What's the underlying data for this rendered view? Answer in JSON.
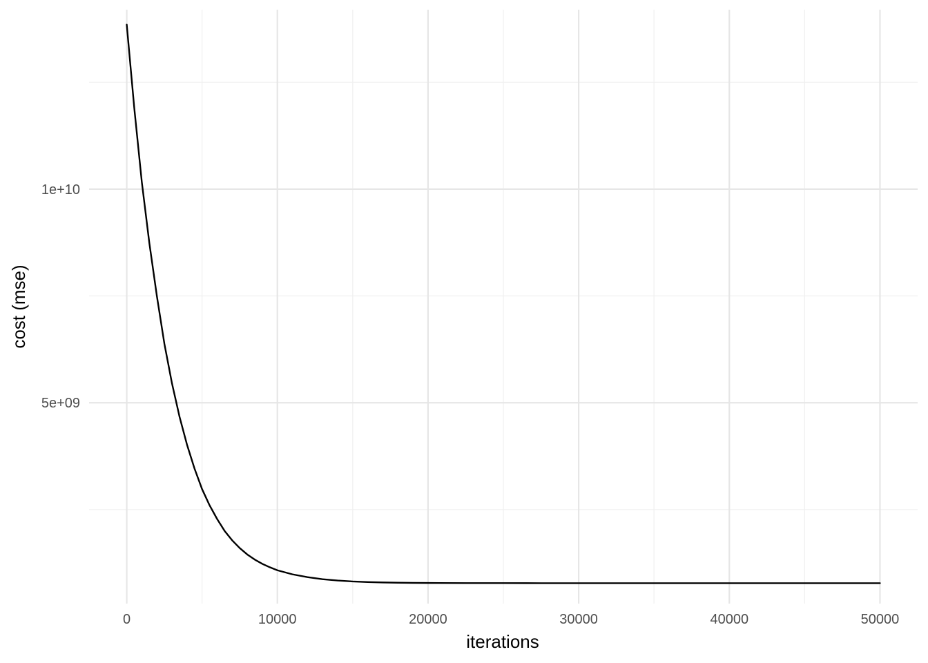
{
  "chart_data": {
    "type": "line",
    "title": "",
    "xlabel": "iterations",
    "ylabel": "cost (mse)",
    "xlim": [
      -2500,
      52500
    ],
    "ylim": [
      300000000,
      14200000000
    ],
    "x_major_ticks": [
      0,
      10000,
      20000,
      30000,
      40000,
      50000
    ],
    "x_major_tick_labels": [
      "0",
      "10000",
      "20000",
      "30000",
      "40000",
      "50000"
    ],
    "x_minor_ticks": [
      5000,
      15000,
      25000,
      35000,
      45000
    ],
    "y_major_ticks": [
      5000000000,
      10000000000
    ],
    "y_major_tick_labels": [
      "5e+09",
      "1e+10"
    ],
    "y_minor_ticks": [
      2500000000,
      7500000000,
      12500000000
    ],
    "grid": true,
    "legend": "none",
    "line_color": "#000000",
    "series": [
      {
        "x": [
          0,
          500,
          1000,
          1500,
          2000,
          2500,
          3000,
          3500,
          4000,
          4500,
          5000,
          5500,
          6000,
          6500,
          7000,
          7500,
          8000,
          8500,
          9000,
          9500,
          10000,
          11000,
          12000,
          13000,
          14000,
          15000,
          16000,
          17000,
          18000,
          19000,
          20000,
          22500,
          25000,
          27500,
          30000,
          32500,
          35000,
          37500,
          40000,
          42500,
          45000,
          47500,
          50000
        ],
        "y": [
          13850000000,
          11900000000,
          10170000000,
          8740000000,
          7500000000,
          6380000000,
          5460000000,
          4680000000,
          4020000000,
          3460000000,
          2980000000,
          2600000000,
          2280000000,
          2000000000,
          1780000000,
          1600000000,
          1450000000,
          1330000000,
          1230000000,
          1150000000,
          1080000000,
          985000000,
          920000000,
          870000000,
          840000000,
          818000000,
          804000000,
          795000000,
          789000000,
          785000000,
          783000000,
          780000000,
          779000000,
          778500000,
          778000000,
          778000000,
          778000000,
          778000000,
          778000000,
          778000000,
          778000000,
          778000000,
          778000000
        ]
      }
    ]
  }
}
